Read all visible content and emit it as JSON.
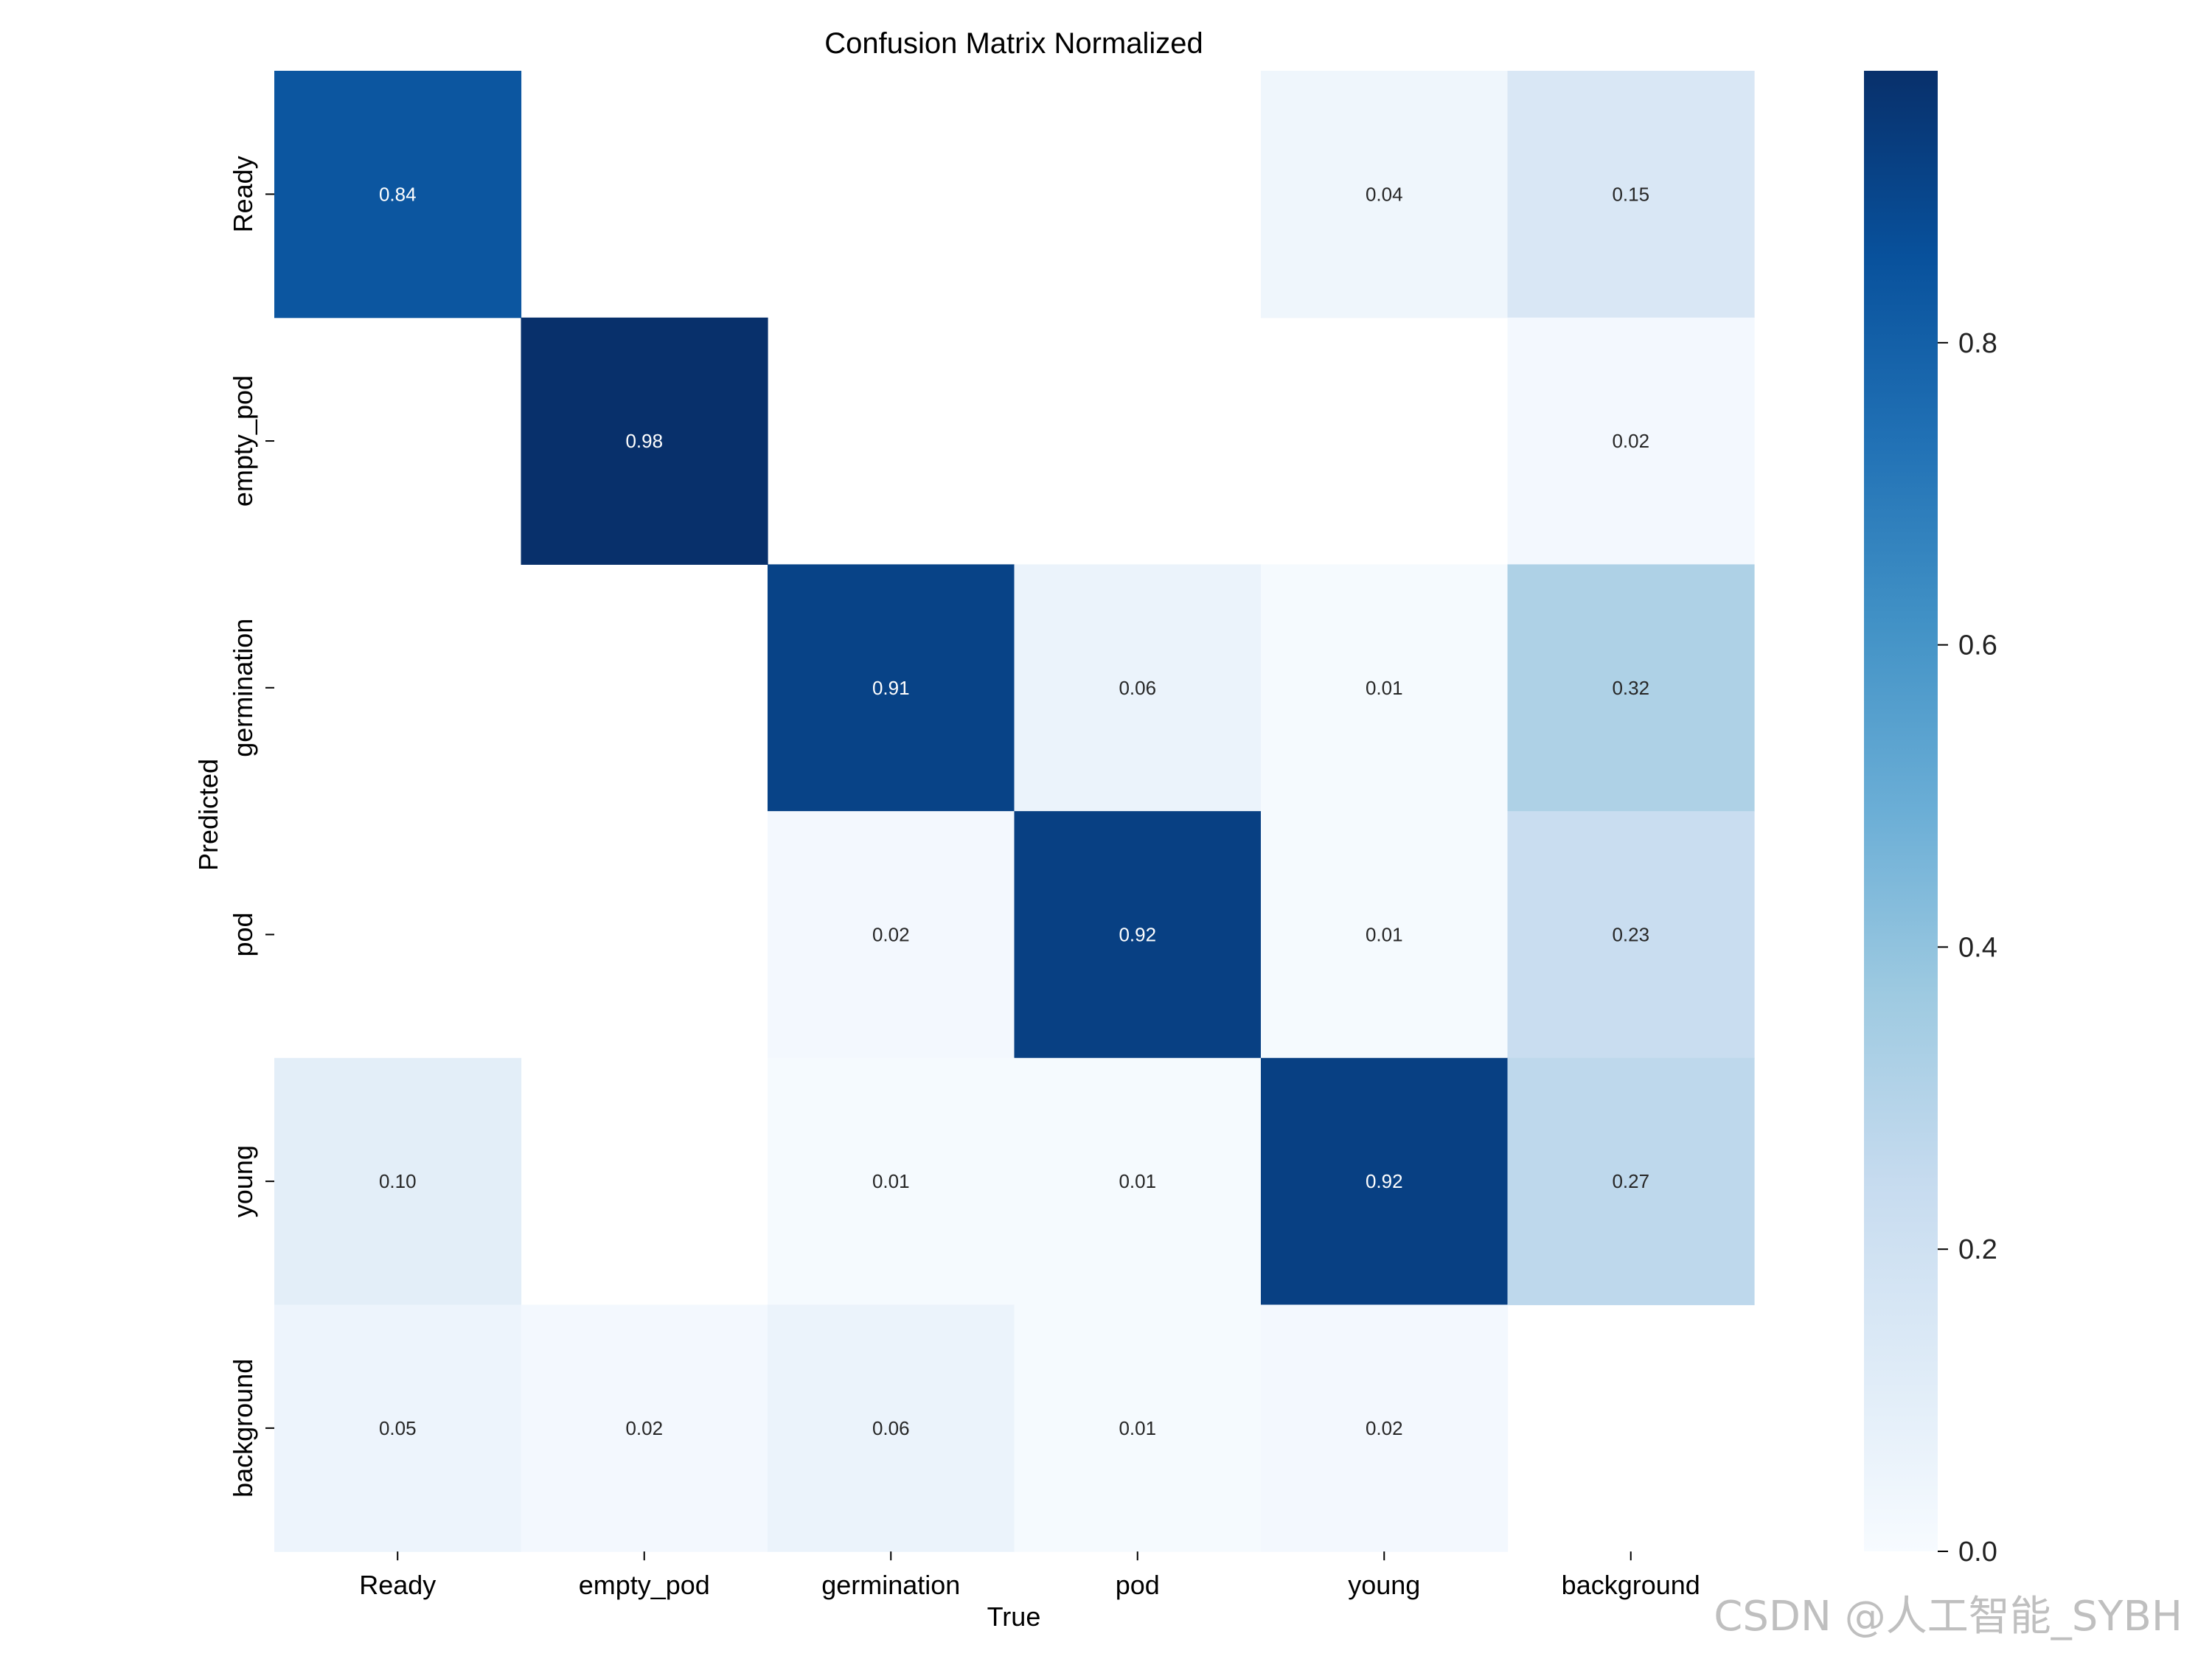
{
  "chart_data": {
    "type": "heatmap",
    "title": "Confusion Matrix Normalized",
    "xlabel": "True",
    "ylabel": "Predicted",
    "x_categories": [
      "Ready",
      "empty_pod",
      "germination",
      "pod",
      "young",
      "background"
    ],
    "y_categories": [
      "Ready",
      "empty_pod",
      "germination",
      "pod",
      "young",
      "background"
    ],
    "values": [
      [
        0.84,
        null,
        null,
        null,
        0.04,
        0.15
      ],
      [
        null,
        0.98,
        null,
        null,
        null,
        0.02
      ],
      [
        null,
        null,
        0.91,
        0.06,
        0.01,
        0.32
      ],
      [
        null,
        null,
        0.02,
        0.92,
        0.01,
        0.23
      ],
      [
        0.1,
        null,
        0.01,
        0.01,
        0.92,
        0.27
      ],
      [
        0.05,
        0.02,
        0.06,
        0.01,
        0.02,
        null
      ]
    ],
    "value_labels": [
      [
        "0.84",
        "",
        "",
        "",
        "0.04",
        "0.15"
      ],
      [
        "",
        "0.98",
        "",
        "",
        "",
        "0.02"
      ],
      [
        "",
        "",
        "0.91",
        "0.06",
        "0.01",
        "0.32"
      ],
      [
        "",
        "",
        "0.02",
        "0.92",
        "0.01",
        "0.23"
      ],
      [
        "0.10",
        "",
        "0.01",
        "0.01",
        "0.92",
        "0.27"
      ],
      [
        "0.05",
        "0.02",
        "0.06",
        "0.01",
        "0.02",
        ""
      ]
    ],
    "colorbar": {
      "range": [
        0,
        0.98
      ],
      "ticks": [
        0.0,
        0.2,
        0.4,
        0.6,
        0.8
      ],
      "tick_labels": [
        "0.0",
        "0.2",
        "0.4",
        "0.6",
        "0.8"
      ],
      "colormap": "Blues"
    },
    "colormap_stops": [
      "#f7fbff",
      "#deebf7",
      "#c6dbef",
      "#9ecae1",
      "#6baed6",
      "#4292c6",
      "#2171b5",
      "#08519c",
      "#08306b"
    ]
  },
  "watermark": "CSDN @人工智能_SYBH"
}
